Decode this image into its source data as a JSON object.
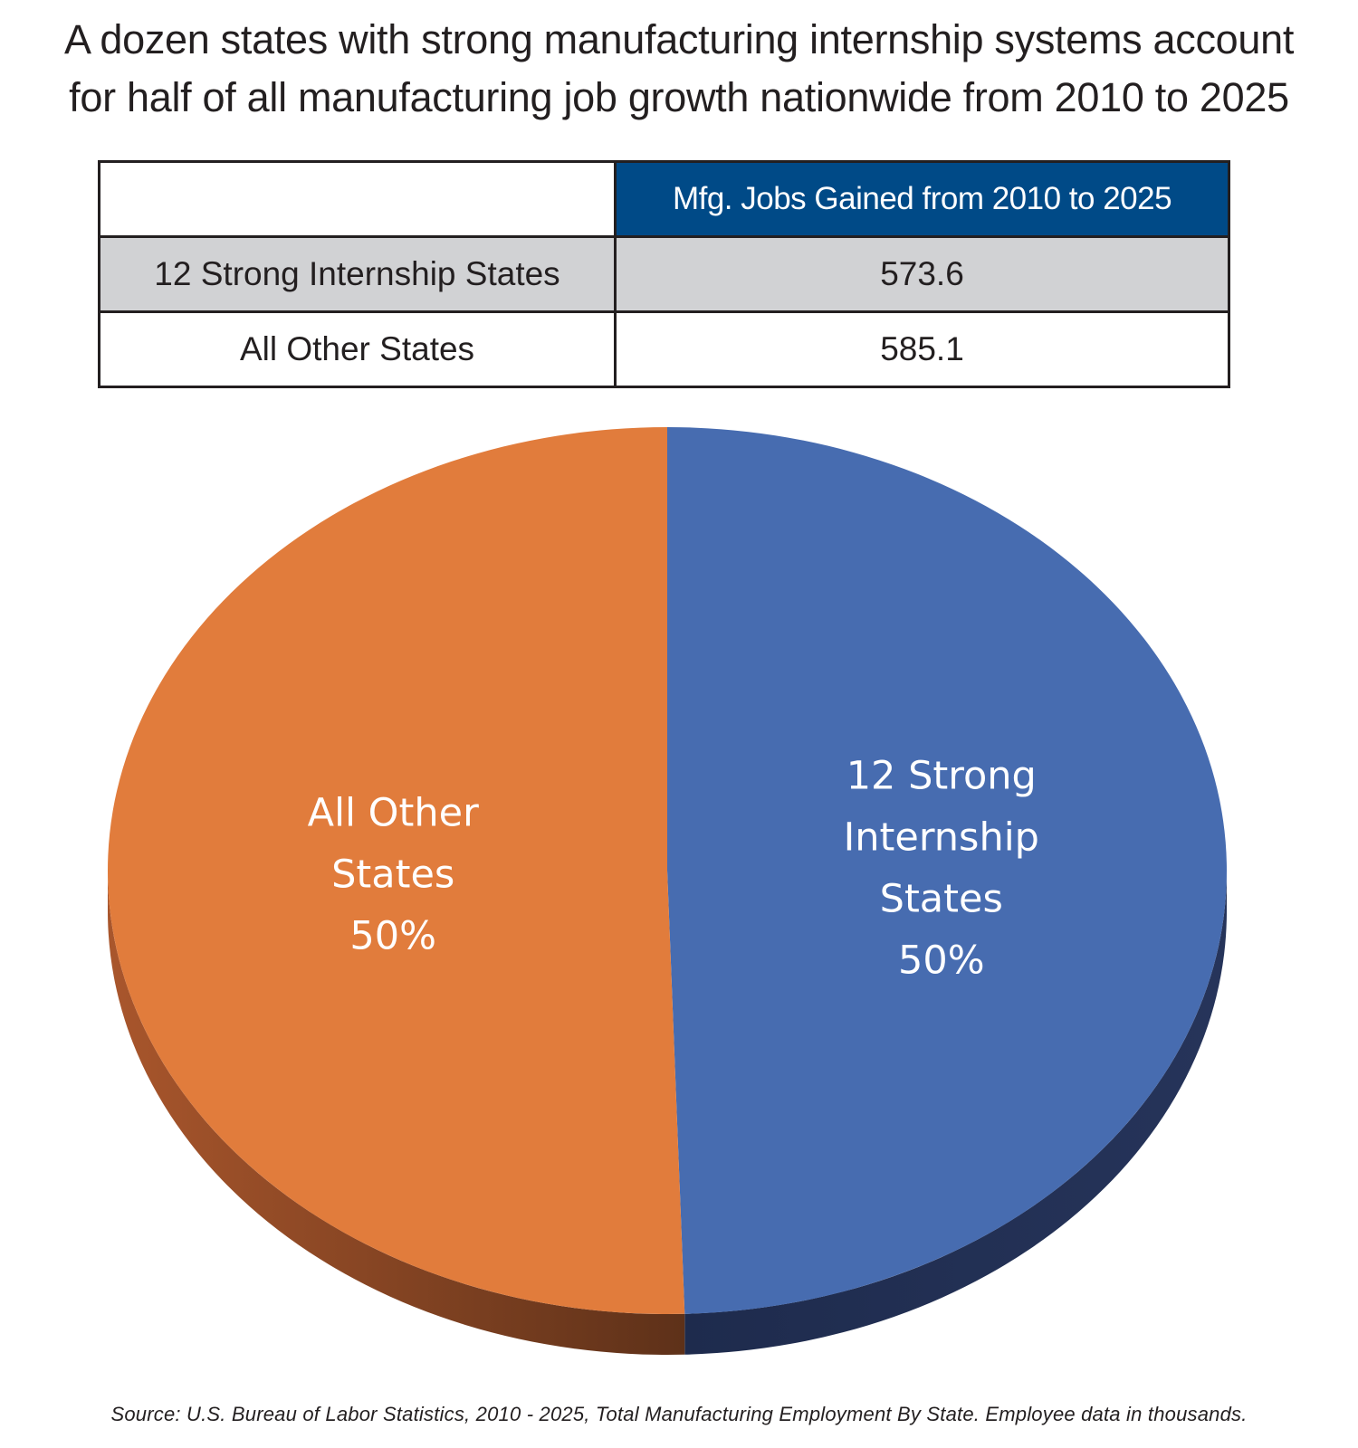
{
  "title_lines": [
    "A dozen states with strong manufacturing internship systems account",
    "for half of all manufacturing job growth nationwide from 2010 to 2025"
  ],
  "table": {
    "header": [
      "",
      "Mfg. Jobs Gained from 2010 to 2025"
    ],
    "rows": [
      {
        "label": "12 Strong Internship States",
        "value": "573.6"
      },
      {
        "label": "All Other States",
        "value": "585.1"
      }
    ],
    "header_color": "#004a87",
    "shaded_row_color": "#d1d2d4"
  },
  "chart_data": {
    "type": "pie",
    "style": "3d",
    "slices": [
      {
        "label_lines": [
          "12 Strong",
          "Internship",
          "States",
          "50%"
        ],
        "value": 573.6,
        "percent": 50,
        "color": "#476cb0",
        "side_color": "#1e2b4d"
      },
      {
        "label_lines": [
          "All Other",
          "States",
          "50%"
        ],
        "value": 585.1,
        "percent": 50,
        "color": "#e17c3c",
        "side_color": "#7a3f22"
      }
    ]
  },
  "source": "Source: U.S. Bureau of Labor Statistics, 2010 - 2025, Total Manufacturing Employment By State. Employee data in thousands."
}
